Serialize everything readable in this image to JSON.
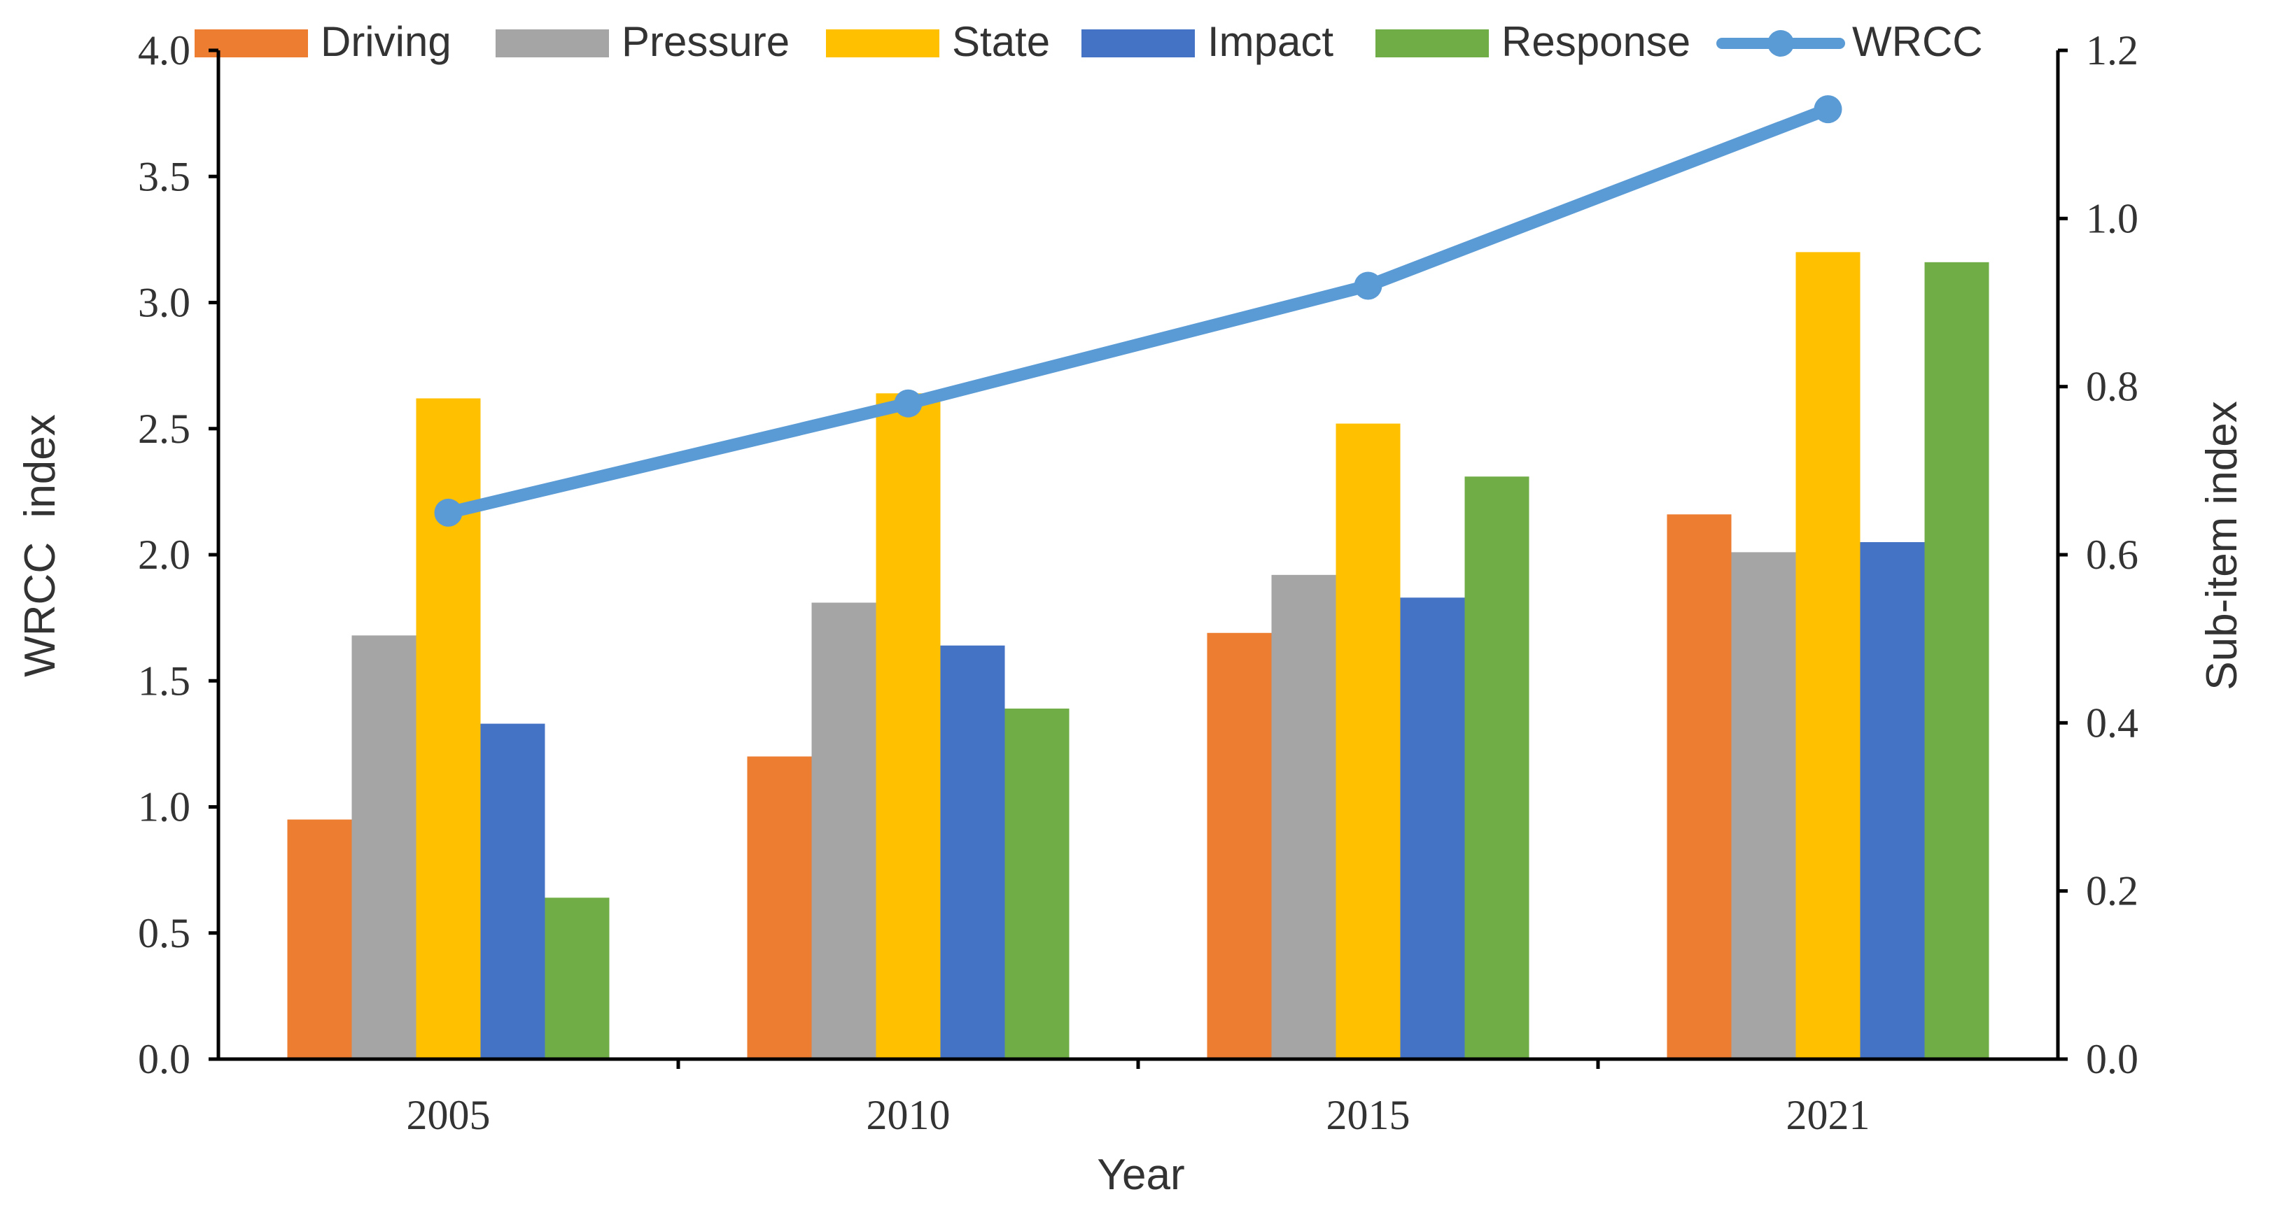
{
  "chart_data": {
    "type": "bar+line",
    "categories": [
      "2005",
      "2010",
      "2015",
      "2021"
    ],
    "xlabel": "Year",
    "ylabel_left": "WRCC  index",
    "ylabel_right": "Sub-item index",
    "ylim_left": [
      0.0,
      4.0
    ],
    "ylim_right": [
      0.0,
      1.2
    ],
    "left_ticks": [
      "0.0",
      "0.5",
      "1.0",
      "1.5",
      "2.0",
      "2.5",
      "3.0",
      "3.5",
      "4.0"
    ],
    "right_ticks": [
      "0.0",
      "0.2",
      "0.4",
      "0.6",
      "0.8",
      "1.0",
      "1.2"
    ],
    "legend_position": "top",
    "series": [
      {
        "name": "Driving",
        "kind": "bar",
        "color": "#ED7D31",
        "values": [
          0.95,
          1.2,
          1.69,
          2.16
        ]
      },
      {
        "name": "Pressure",
        "kind": "bar",
        "color": "#A5A5A5",
        "values": [
          1.68,
          1.81,
          1.92,
          2.01
        ]
      },
      {
        "name": "State",
        "kind": "bar",
        "color": "#FFC000",
        "values": [
          2.62,
          2.64,
          2.52,
          3.2
        ]
      },
      {
        "name": "Impact",
        "kind": "bar",
        "color": "#4472C4",
        "values": [
          1.33,
          1.64,
          1.83,
          2.05
        ]
      },
      {
        "name": "Response",
        "kind": "bar",
        "color": "#70AD47",
        "values": [
          0.64,
          1.39,
          2.31,
          3.16
        ]
      },
      {
        "name": "WRCC",
        "kind": "line",
        "axis": "right",
        "color": "#5B9BD5",
        "values": [
          0.65,
          0.78,
          0.92,
          1.13
        ]
      }
    ]
  }
}
